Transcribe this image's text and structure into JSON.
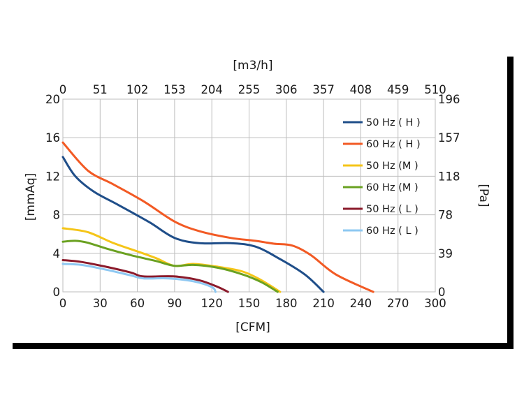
{
  "chart_data": {
    "type": "line",
    "xlabel": "[CFM]",
    "ylabel": "[mmAq]",
    "x2label": "[m3/h]",
    "y2label": "[Pa]",
    "xlim": [
      0,
      300
    ],
    "ylim": [
      0,
      20
    ],
    "grid": true,
    "legend_position": "right",
    "x_ticks": [
      "0",
      "30",
      "60",
      "90",
      "120",
      "150",
      "180",
      "210",
      "240",
      "270",
      "300"
    ],
    "y_ticks": [
      "0",
      "4",
      "8",
      "12",
      "16",
      "20"
    ],
    "x2_ticks": [
      "0",
      "51",
      "102",
      "153",
      "204",
      "255",
      "306",
      "357",
      "408",
      "459",
      "510"
    ],
    "y2_ticks": [
      "0",
      "39",
      "78",
      "118",
      "157",
      "196"
    ],
    "series": [
      {
        "name": "50 Hz ( H )",
        "color": "#1f4e89",
        "points": [
          [
            0,
            14
          ],
          [
            10,
            12
          ],
          [
            25,
            10.4
          ],
          [
            45,
            9
          ],
          [
            70,
            7.2
          ],
          [
            90,
            5.6
          ],
          [
            110,
            5.05
          ],
          [
            135,
            5.05
          ],
          [
            155,
            4.7
          ],
          [
            175,
            3.4
          ],
          [
            195,
            1.8
          ],
          [
            210,
            0
          ]
        ]
      },
      {
        "name": "60 Hz ( H )",
        "color": "#f25a24",
        "points": [
          [
            0,
            15.5
          ],
          [
            20,
            12.6
          ],
          [
            40,
            11.2
          ],
          [
            65,
            9.4
          ],
          [
            90,
            7.3
          ],
          [
            110,
            6.3
          ],
          [
            135,
            5.6
          ],
          [
            155,
            5.3
          ],
          [
            170,
            5
          ],
          [
            185,
            4.8
          ],
          [
            200,
            3.8
          ],
          [
            220,
            1.8
          ],
          [
            250,
            0
          ]
        ]
      },
      {
        "name": "50 Hz (M )",
        "color": "#f5c518",
        "points": [
          [
            0,
            6.6
          ],
          [
            20,
            6.2
          ],
          [
            40,
            5.1
          ],
          [
            60,
            4.2
          ],
          [
            75,
            3.5
          ],
          [
            90,
            2.7
          ],
          [
            105,
            2.9
          ],
          [
            125,
            2.6
          ],
          [
            145,
            2.1
          ],
          [
            160,
            1.2
          ],
          [
            175,
            0
          ]
        ]
      },
      {
        "name": "60 Hz (M )",
        "color": "#6aa121",
        "points": [
          [
            0,
            5.2
          ],
          [
            10,
            5.3
          ],
          [
            20,
            5.1
          ],
          [
            35,
            4.5
          ],
          [
            55,
            3.8
          ],
          [
            75,
            3.2
          ],
          [
            90,
            2.7
          ],
          [
            105,
            2.8
          ],
          [
            125,
            2.5
          ],
          [
            145,
            1.8
          ],
          [
            160,
            1
          ],
          [
            173,
            0
          ]
        ]
      },
      {
        "name": "50 Hz ( L )",
        "color": "#8b1a2b",
        "points": [
          [
            0,
            3.3
          ],
          [
            15,
            3.1
          ],
          [
            35,
            2.6
          ],
          [
            55,
            2.0
          ],
          [
            65,
            1.6
          ],
          [
            90,
            1.6
          ],
          [
            110,
            1.2
          ],
          [
            125,
            0.5
          ],
          [
            133,
            0
          ]
        ]
      },
      {
        "name": "60 Hz ( L )",
        "color": "#8ec8f2",
        "points": [
          [
            0,
            2.9
          ],
          [
            15,
            2.8
          ],
          [
            35,
            2.3
          ],
          [
            55,
            1.7
          ],
          [
            65,
            1.4
          ],
          [
            85,
            1.4
          ],
          [
            105,
            1.1
          ],
          [
            120,
            0.5
          ],
          [
            123,
            0
          ]
        ]
      }
    ]
  }
}
